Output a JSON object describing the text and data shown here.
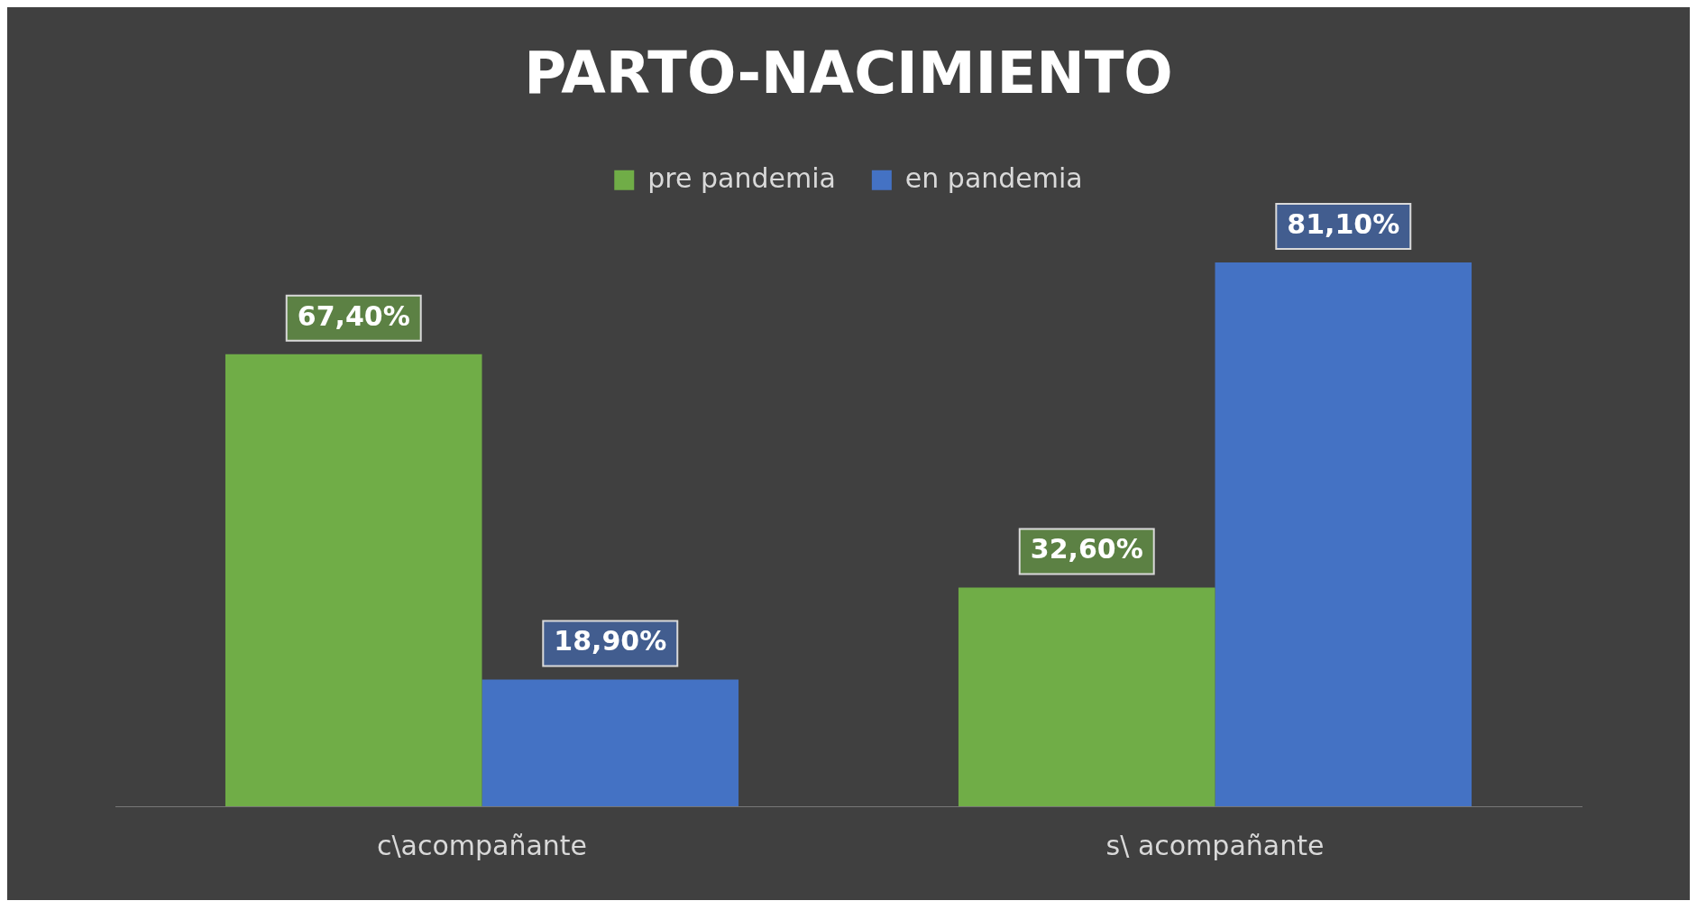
{
  "chart_data": {
    "type": "bar",
    "title": "PARTO-NACIMIENTO",
    "categories": [
      "c\\acompañante",
      "s\\ acompañante"
    ],
    "series": [
      {
        "name": "pre pandemia",
        "color": "#70ad47",
        "values": [
          67.4,
          32.6
        ],
        "value_labels": [
          "67,40%",
          "32,60%"
        ]
      },
      {
        "name": "en pandemia",
        "color": "#4472c4",
        "values": [
          18.9,
          81.1
        ],
        "value_labels": [
          "18,90%",
          "81,10%"
        ]
      }
    ],
    "legend": "top",
    "grid": false
  }
}
